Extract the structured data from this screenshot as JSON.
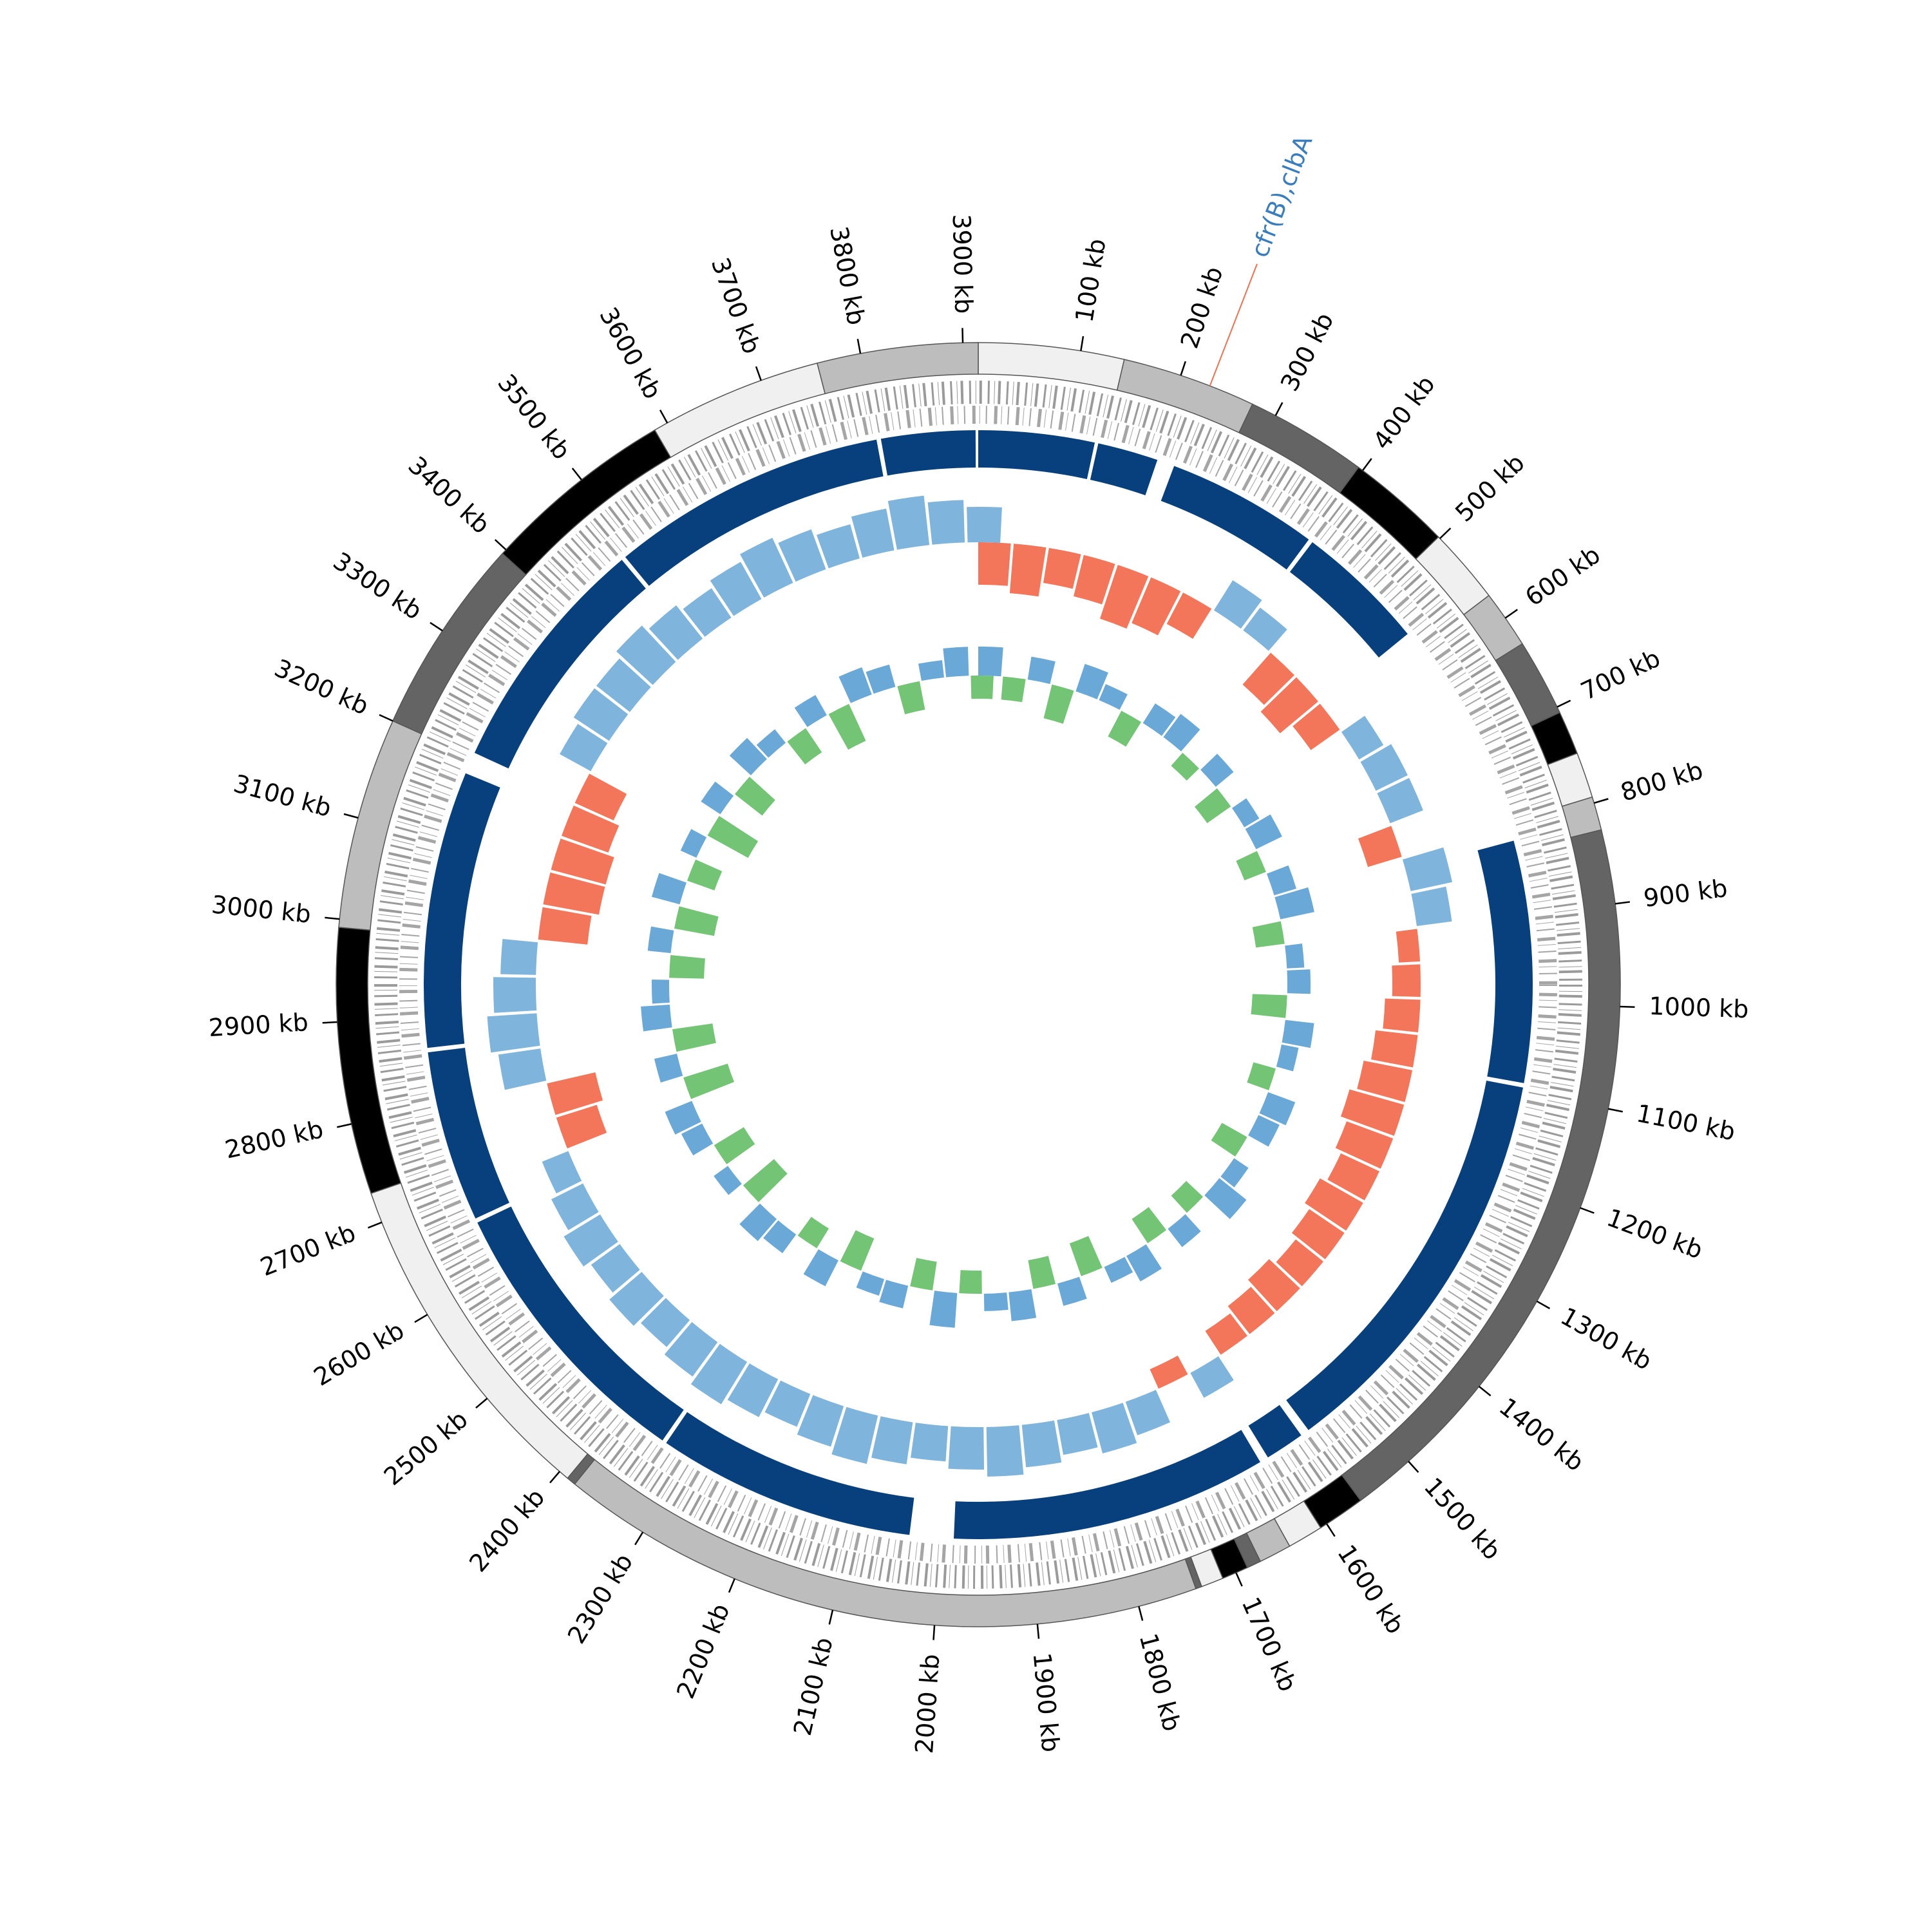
{
  "chart_data": {
    "type": "circular-genome",
    "xlim": [
      0,
      3915
    ],
    "xticks": [
      {
        "value": 100,
        "label": "100 kb"
      },
      {
        "value": 200,
        "label": "200 kb"
      },
      {
        "value": 300,
        "label": "300 kb"
      },
      {
        "value": 400,
        "label": "400 kb"
      },
      {
        "value": 500,
        "label": "500 kb"
      },
      {
        "value": 600,
        "label": "600 kb"
      },
      {
        "value": 700,
        "label": "700 kb"
      },
      {
        "value": 800,
        "label": "800 kb"
      },
      {
        "value": 900,
        "label": "900 kb"
      },
      {
        "value": 1000,
        "label": "1000 kb"
      },
      {
        "value": 1100,
        "label": "1100 kb"
      },
      {
        "value": 1200,
        "label": "1200 kb"
      },
      {
        "value": 1300,
        "label": "1300 kb"
      },
      {
        "value": 1400,
        "label": "1400 kb"
      },
      {
        "value": 1500,
        "label": "1500 kb"
      },
      {
        "value": 1600,
        "label": "1600 kb"
      },
      {
        "value": 1700,
        "label": "1700 kb"
      },
      {
        "value": 1800,
        "label": "1800 kb"
      },
      {
        "value": 1900,
        "label": "1900 kb"
      },
      {
        "value": 2000,
        "label": "2000 kb"
      },
      {
        "value": 2100,
        "label": "2100 kb"
      },
      {
        "value": 2200,
        "label": "2200 kb"
      },
      {
        "value": 2300,
        "label": "2300 kb"
      },
      {
        "value": 2400,
        "label": "2400 kb"
      },
      {
        "value": 2500,
        "label": "2500 kb"
      },
      {
        "value": 2600,
        "label": "2600 kb"
      },
      {
        "value": 2700,
        "label": "2700 kb"
      },
      {
        "value": 2800,
        "label": "2800 kb"
      },
      {
        "value": 2900,
        "label": "2900 kb"
      },
      {
        "value": 3000,
        "label": "3000 kb"
      },
      {
        "value": 3100,
        "label": "3100 kb"
      },
      {
        "value": 3200,
        "label": "3200 kb"
      },
      {
        "value": 3300,
        "label": "3300 kb"
      },
      {
        "value": 3400,
        "label": "3400 kb"
      },
      {
        "value": 3500,
        "label": "3500 kb"
      },
      {
        "value": 3600,
        "label": "3600 kb"
      },
      {
        "value": 3700,
        "label": "3700 kb"
      },
      {
        "value": 3800,
        "label": "3800 kb"
      },
      {
        "value": 3900,
        "label": "3900 kb"
      }
    ],
    "contigs": [
      {
        "start": 0,
        "end": 143,
        "color": "#f0f0f0"
      },
      {
        "start": 143,
        "end": 275,
        "color": "#bdbdbd"
      },
      {
        "start": 275,
        "end": 395,
        "color": "#646464"
      },
      {
        "start": 395,
        "end": 498,
        "color": "#000000"
      },
      {
        "start": 498,
        "end": 573,
        "color": "#f0f0f0"
      },
      {
        "start": 573,
        "end": 630,
        "color": "#bdbdbd"
      },
      {
        "start": 630,
        "end": 706,
        "color": "#646464"
      },
      {
        "start": 706,
        "end": 749,
        "color": "#000000"
      },
      {
        "start": 749,
        "end": 794,
        "color": "#f0f0f0"
      },
      {
        "start": 794,
        "end": 827,
        "color": "#bdbdbd"
      },
      {
        "start": 827,
        "end": 1560,
        "color": "#646464"
      },
      {
        "start": 1560,
        "end": 1607,
        "color": "#000000"
      },
      {
        "start": 1607,
        "end": 1642,
        "color": "#f0f0f0"
      },
      {
        "start": 1642,
        "end": 1674,
        "color": "#bdbdbd"
      },
      {
        "start": 1674,
        "end": 1688,
        "color": "#646464"
      },
      {
        "start": 1688,
        "end": 1714,
        "color": "#000000"
      },
      {
        "start": 1714,
        "end": 1736,
        "color": "#f0f0f0"
      },
      {
        "start": 1736,
        "end": 1742,
        "color": "#646464"
      },
      {
        "start": 1742,
        "end": 2381,
        "color": "#bdbdbd"
      },
      {
        "start": 2381,
        "end": 2390,
        "color": "#646464"
      },
      {
        "start": 2390,
        "end": 2730,
        "color": "#f0f0f0"
      },
      {
        "start": 2730,
        "end": 2992,
        "color": "#000000"
      },
      {
        "start": 2992,
        "end": 3200,
        "color": "#bdbdbd"
      },
      {
        "start": 3200,
        "end": 3395,
        "color": "#646464"
      },
      {
        "start": 3395,
        "end": 3586,
        "color": "#000000"
      },
      {
        "start": 3586,
        "end": 3757,
        "color": "#f0f0f0"
      },
      {
        "start": 3757,
        "end": 3915,
        "color": "#bdbdbd"
      }
    ],
    "blocks": {
      "color": "#08407e",
      "items": [
        {
          "start": 0,
          "end": 132
        },
        {
          "start": 136,
          "end": 205
        },
        {
          "start": 225,
          "end": 398
        },
        {
          "start": 403,
          "end": 552
        },
        {
          "start": 815,
          "end": 1090
        },
        {
          "start": 1095,
          "end": 1560
        },
        {
          "start": 1570,
          "end": 1615
        },
        {
          "start": 1625,
          "end": 1985
        },
        {
          "start": 2035,
          "end": 2330
        },
        {
          "start": 2335,
          "end": 2660
        },
        {
          "start": 2665,
          "end": 2860
        },
        {
          "start": 2865,
          "end": 3180
        },
        {
          "start": 3205,
          "end": 3480
        },
        {
          "start": 3485,
          "end": 3800
        },
        {
          "start": 3805,
          "end": 3912
        }
      ]
    },
    "gc_skew": {
      "positive_color": "#7fb4dc",
      "negative_color": "#f4765a",
      "x": [
        0,
        50,
        100,
        150,
        200,
        250,
        300,
        350,
        400,
        450,
        500,
        550,
        600,
        650,
        700,
        750,
        800,
        850,
        900,
        950,
        1000,
        1050,
        1100,
        1150,
        1200,
        1250,
        1300,
        1350,
        1400,
        1450,
        1500,
        1550,
        1600,
        1650,
        1700,
        1750,
        1800,
        1850,
        1900,
        1950,
        2000,
        2050,
        2100,
        2150,
        2200,
        2250,
        2300,
        2350,
        2400,
        2450,
        2500,
        2550,
        2600,
        2650,
        2700,
        2750,
        2800,
        2850,
        2900,
        2950,
        3000,
        3050,
        3100,
        3150,
        3200,
        3250,
        3300,
        3350,
        3400,
        3450,
        3500,
        3550,
        3600,
        3650,
        3700,
        3750,
        3800,
        3850,
        3900
      ],
      "values": [
        -0.6,
        -0.7,
        -0.5,
        -0.6,
        -0.8,
        -0.7,
        -0.5,
        0.5,
        0.4,
        -0.6,
        -0.7,
        -0.5,
        0.4,
        0.5,
        0.5,
        -0.5,
        0.6,
        0.5,
        -0.3,
        -0.4,
        -0.5,
        -0.6,
        -0.7,
        -0.8,
        -0.7,
        -0.6,
        -0.7,
        -0.6,
        -0.5,
        -0.6,
        -0.5,
        -0.4,
        0.4,
        -0.3,
        0.5,
        0.6,
        0.5,
        0.6,
        0.7,
        0.6,
        0.5,
        0.6,
        0.7,
        0.6,
        0.5,
        0.6,
        0.7,
        0.6,
        0.5,
        0.6,
        0.5,
        0.6,
        0.5,
        0.4,
        -0.6,
        -0.7,
        0.6,
        0.7,
        0.6,
        0.5,
        -0.7,
        -0.8,
        -0.8,
        -0.7,
        -0.6,
        0.5,
        0.6,
        0.6,
        0.7,
        0.6,
        0.5,
        0.6,
        0.7,
        0.6,
        0.5,
        0.6,
        0.7,
        0.6,
        0.5
      ]
    },
    "gc_content": {
      "positive_color": "#6aa8d8",
      "negative_color": "#74c476",
      "x": [
        0,
        50,
        100,
        150,
        200,
        250,
        300,
        350,
        400,
        450,
        500,
        550,
        600,
        650,
        700,
        750,
        800,
        850,
        900,
        950,
        1000,
        1050,
        1100,
        1150,
        1200,
        1250,
        1300,
        1350,
        1400,
        1450,
        1500,
        1550,
        1600,
        1650,
        1700,
        1750,
        1800,
        1850,
        1900,
        1950,
        2000,
        2050,
        2100,
        2150,
        2200,
        2250,
        2300,
        2350,
        2400,
        2450,
        2500,
        2550,
        2600,
        2650,
        2700,
        2750,
        2800,
        2850,
        2900,
        2950,
        3000,
        3050,
        3100,
        3150,
        3200,
        3250,
        3300,
        3350,
        3400,
        3450,
        3500,
        3550,
        3600,
        3650,
        3700,
        3750,
        3800,
        3850,
        3900
      ],
      "values": [
        0.5,
        -0.4,
        0.4,
        -0.6,
        0.5,
        0.3,
        -0.5,
        0.4,
        0.5,
        -0.3,
        0.4,
        -0.5,
        0.3,
        0.5,
        -0.4,
        0.4,
        0.6,
        -0.5,
        0.3,
        0.4,
        -0.6,
        0.5,
        0.3,
        -0.4,
        0.5,
        0.4,
        -0.5,
        0.3,
        0.6,
        -0.4,
        0.4,
        -0.5,
        0.5,
        0.3,
        -0.6,
        0.4,
        -0.5,
        0.5,
        0.3,
        -0.4,
        0.6,
        -0.5,
        0.4,
        0.3,
        -0.6,
        0.5,
        -0.4,
        0.4,
        0.5,
        -0.7,
        0.3,
        -0.6,
        0.4,
        0.5,
        -0.8,
        0.4,
        -0.7,
        0.5,
        0.3,
        -0.6,
        0.4,
        -0.7,
        0.5,
        -0.5,
        0.3,
        -0.8,
        0.4,
        -0.6,
        0.5,
        0.3,
        -0.5,
        0.4,
        -0.7,
        0.5,
        0.4,
        -0.5,
        0.3,
        0.5,
        -0.4
      ]
    },
    "annotations": [
      {
        "text": "cfr(B),clbA",
        "x": 230,
        "color": "#3a7dbf",
        "line_color": "#f07050"
      }
    ]
  }
}
